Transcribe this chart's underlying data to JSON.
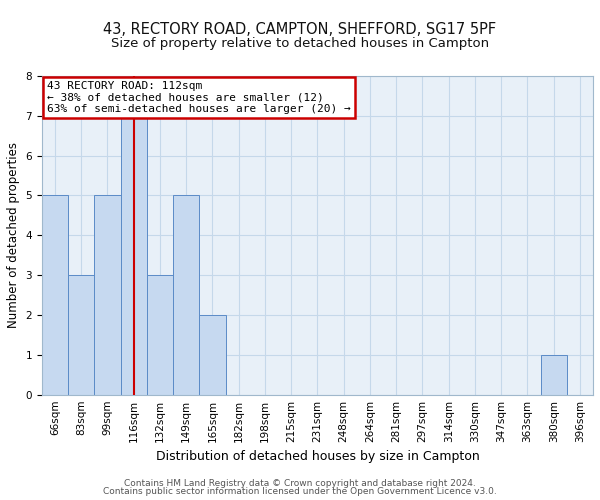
{
  "title": "43, RECTORY ROAD, CAMPTON, SHEFFORD, SG17 5PF",
  "subtitle": "Size of property relative to detached houses in Campton",
  "xlabel": "Distribution of detached houses by size in Campton",
  "ylabel": "Number of detached properties",
  "bar_labels": [
    "66sqm",
    "83sqm",
    "99sqm",
    "116sqm",
    "132sqm",
    "149sqm",
    "165sqm",
    "182sqm",
    "198sqm",
    "215sqm",
    "231sqm",
    "248sqm",
    "264sqm",
    "281sqm",
    "297sqm",
    "314sqm",
    "330sqm",
    "347sqm",
    "363sqm",
    "380sqm",
    "396sqm"
  ],
  "bar_values": [
    5,
    3,
    5,
    7,
    3,
    5,
    2,
    0,
    0,
    0,
    0,
    0,
    0,
    0,
    0,
    0,
    0,
    0,
    0,
    1,
    0
  ],
  "bar_color": "#c6d9f0",
  "bar_edge_color": "#5b8bc7",
  "property_line_x": 3.0,
  "annotation_line1": "43 RECTORY ROAD: 112sqm",
  "annotation_line2": "← 38% of detached houses are smaller (12)",
  "annotation_line3": "63% of semi-detached houses are larger (20) →",
  "annotation_box_color": "#ffffff",
  "annotation_box_edge_color": "#cc0000",
  "vline_color": "#cc0000",
  "ylim": [
    0,
    8
  ],
  "yticks": [
    0,
    1,
    2,
    3,
    4,
    5,
    6,
    7,
    8
  ],
  "grid_color": "#c5d8ea",
  "bg_color": "#e8f0f8",
  "footnote1": "Contains HM Land Registry data © Crown copyright and database right 2024.",
  "footnote2": "Contains public sector information licensed under the Open Government Licence v3.0.",
  "title_fontsize": 10.5,
  "subtitle_fontsize": 9.5,
  "annotation_fontsize": 8.0,
  "tick_fontsize": 7.5,
  "ylabel_fontsize": 8.5,
  "xlabel_fontsize": 9.0
}
